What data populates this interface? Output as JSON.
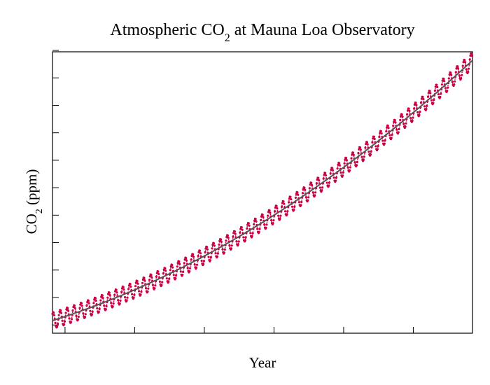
{
  "chart_data": {
    "type": "line",
    "title": "Atmospheric CO",
    "title_subscript": "2",
    "title_suffix": " at Mauna Loa Observatory",
    "xlabel": "Year",
    "ylabel": "CO",
    "ylabel_subscript": "2",
    "ylabel_suffix": " (ppm)",
    "xlim": [
      1958.2,
      2018.5
    ],
    "ylim": [
      310.0,
      412.5
    ],
    "x_ticks": [
      1960,
      1970,
      1980,
      1990,
      2000,
      2010
    ],
    "y_ticks": [
      313,
      323,
      333,
      343,
      353,
      363,
      373,
      383,
      393,
      403,
      413
    ],
    "tick_labels_shown": false,
    "grid": false,
    "trend": {
      "start_year": 1958.2,
      "base": 314.6,
      "linear": 0.8,
      "quadratic": 0.0128
    },
    "seasonal_amplitude": 3.0,
    "series": [
      {
        "role": "monthly_raw",
        "color": "#cc0044",
        "style": "dotted-with-markers"
      },
      {
        "role": "trend",
        "color": "#555555",
        "style": "solid"
      }
    ]
  }
}
